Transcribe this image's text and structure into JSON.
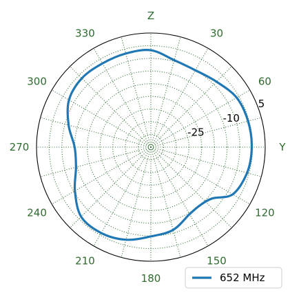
{
  "chart_data": {
    "type": "polar-line",
    "title": "",
    "orientation": "clockwise, 0° at top",
    "angle_ticks": [
      {
        "deg": 0,
        "label": "Z"
      },
      {
        "deg": 30,
        "label": "30"
      },
      {
        "deg": 60,
        "label": "60"
      },
      {
        "deg": 90,
        "label": "Y"
      },
      {
        "deg": 120,
        "label": "120"
      },
      {
        "deg": 150,
        "label": "150"
      },
      {
        "deg": 180,
        "label": "180"
      },
      {
        "deg": 210,
        "label": "210"
      },
      {
        "deg": 240,
        "label": "240"
      },
      {
        "deg": 270,
        "label": "270"
      },
      {
        "deg": 300,
        "label": "300"
      },
      {
        "deg": 330,
        "label": "330"
      }
    ],
    "radial_range": [
      -40,
      5
    ],
    "radial_ticks": [
      -25,
      -10,
      5
    ],
    "radial_label_angle_deg": 68,
    "grid": {
      "style": "dotted",
      "color": "#2e6b2e",
      "radial_step": 5,
      "angular_step_deg": 15
    },
    "legend": {
      "position": "bottom-right",
      "entries": [
        "652 MHz"
      ]
    },
    "series": [
      {
        "name": "652 MHz",
        "color": "#1f77b4",
        "theta_deg": [
          0,
          15,
          30,
          45,
          60,
          75,
          90,
          105,
          120,
          130,
          140,
          150,
          165,
          180,
          195,
          210,
          225,
          240,
          255,
          270,
          285,
          300,
          315,
          330,
          345,
          360
        ],
        "r_db": [
          -1.8,
          -4.5,
          -5.0,
          -3.5,
          -1.0,
          -0.4,
          -0.3,
          -0.8,
          -2.8,
          -8.5,
          -10.0,
          -9.5,
          -6.2,
          -4.8,
          -2.2,
          -0.9,
          -1.2,
          -5.5,
          -9.5,
          -10.0,
          -6.5,
          -2.8,
          -1.6,
          -1.9,
          -1.8,
          -1.8
        ]
      }
    ]
  }
}
